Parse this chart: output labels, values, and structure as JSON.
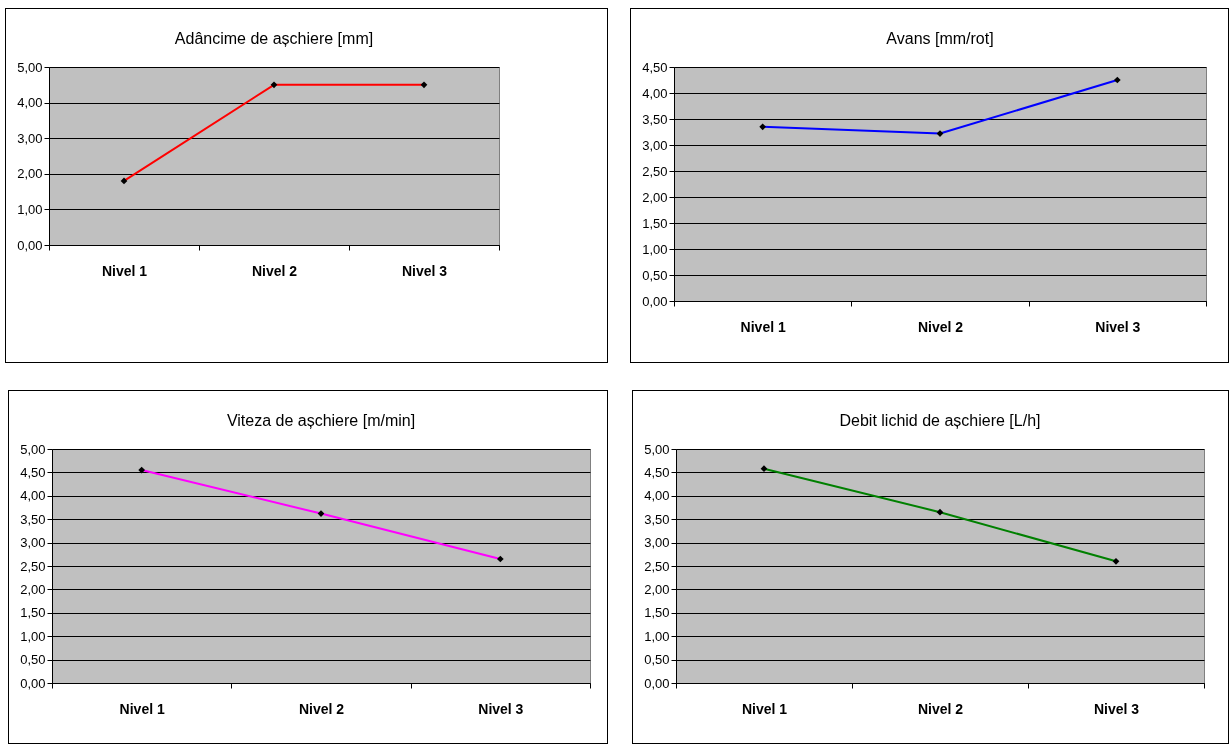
{
  "chart_data": [
    {
      "type": "line",
      "title": "Adâncime de așchiere [mm]",
      "categories": [
        "Nivel 1",
        "Nivel 2",
        "Nivel 3"
      ],
      "series": [
        {
          "color": "#ff0000",
          "values": [
            1.8,
            4.5,
            4.5
          ]
        }
      ],
      "ylim": [
        0,
        5
      ],
      "yticks": [
        {
          "value": 0,
          "label": "0,00"
        },
        {
          "value": 1,
          "label": "1,00"
        },
        {
          "value": 2,
          "label": "2,00"
        },
        {
          "value": 3,
          "label": "3,00"
        },
        {
          "value": 4,
          "label": "4,00"
        },
        {
          "value": 5,
          "label": "5,00"
        }
      ],
      "grid": "y",
      "marker": "diamond"
    },
    {
      "type": "line",
      "title": "Avans [mm/rot]",
      "categories": [
        "Nivel 1",
        "Nivel 2",
        "Nivel 3"
      ],
      "series": [
        {
          "color": "#0000ff",
          "values": [
            3.35,
            3.22,
            4.25
          ]
        }
      ],
      "ylim": [
        0,
        4.5
      ],
      "yticks": [
        {
          "value": 0,
          "label": "0,00"
        },
        {
          "value": 0.5,
          "label": "0,50"
        },
        {
          "value": 1,
          "label": "1,00"
        },
        {
          "value": 1.5,
          "label": "1,50"
        },
        {
          "value": 2,
          "label": "2,00"
        },
        {
          "value": 2.5,
          "label": "2,50"
        },
        {
          "value": 3,
          "label": "3,00"
        },
        {
          "value": 3.5,
          "label": "3,50"
        },
        {
          "value": 4,
          "label": "4,00"
        },
        {
          "value": 4.5,
          "label": "4,50"
        }
      ],
      "grid": "y",
      "marker": "diamond"
    },
    {
      "type": "line",
      "title": "Viteza de așchiere [m/min]",
      "categories": [
        "Nivel 1",
        "Nivel 2",
        "Nivel 3"
      ],
      "series": [
        {
          "color": "#ff00ff",
          "values": [
            4.55,
            3.62,
            2.65
          ]
        }
      ],
      "ylim": [
        0,
        5
      ],
      "yticks": [
        {
          "value": 0,
          "label": "0,00"
        },
        {
          "value": 0.5,
          "label": "0,50"
        },
        {
          "value": 1,
          "label": "1,00"
        },
        {
          "value": 1.5,
          "label": "1,50"
        },
        {
          "value": 2,
          "label": "2,00"
        },
        {
          "value": 2.5,
          "label": "2,50"
        },
        {
          "value": 3,
          "label": "3,00"
        },
        {
          "value": 3.5,
          "label": "3,50"
        },
        {
          "value": 4,
          "label": "4,00"
        },
        {
          "value": 4.5,
          "label": "4,50"
        },
        {
          "value": 5,
          "label": "5,00"
        }
      ],
      "grid": "y",
      "marker": "diamond"
    },
    {
      "type": "line",
      "title": "Debit lichid de așchiere [L/h]",
      "categories": [
        "Nivel 1",
        "Nivel 2",
        "Nivel 3"
      ],
      "series": [
        {
          "color": "#008000",
          "values": [
            4.58,
            3.65,
            2.6
          ]
        }
      ],
      "ylim": [
        0,
        5
      ],
      "yticks": [
        {
          "value": 0,
          "label": "0,00"
        },
        {
          "value": 0.5,
          "label": "0,50"
        },
        {
          "value": 1,
          "label": "1,00"
        },
        {
          "value": 1.5,
          "label": "1,50"
        },
        {
          "value": 2,
          "label": "2,00"
        },
        {
          "value": 2.5,
          "label": "2,50"
        },
        {
          "value": 3,
          "label": "3,00"
        },
        {
          "value": 3.5,
          "label": "3,50"
        },
        {
          "value": 4,
          "label": "4,00"
        },
        {
          "value": 4.5,
          "label": "4,50"
        },
        {
          "value": 5,
          "label": "5,00"
        }
      ],
      "grid": "y",
      "marker": "diamond"
    }
  ]
}
